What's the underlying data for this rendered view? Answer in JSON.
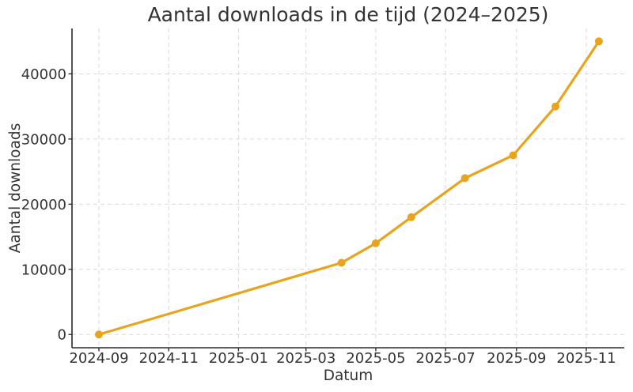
{
  "figure": {
    "background": "#ffffff"
  },
  "chart_data": {
    "type": "line",
    "title": "Aantal downloads in de tijd (2024–2025)",
    "xlabel": "Datum",
    "ylabel": "Aantal downloads",
    "x_axis": {
      "origin": "2024-09-01",
      "ticks": [
        {
          "label": "2024-09",
          "date": "2024-09-01"
        },
        {
          "label": "2024-11",
          "date": "2024-11-01"
        },
        {
          "label": "2025-01",
          "date": "2025-01-01"
        },
        {
          "label": "2025-03",
          "date": "2025-03-01"
        },
        {
          "label": "2025-05",
          "date": "2025-05-01"
        },
        {
          "label": "2025-07",
          "date": "2025-07-01"
        },
        {
          "label": "2025-09",
          "date": "2025-09-01"
        },
        {
          "label": "2025-11",
          "date": "2025-11-01"
        }
      ]
    },
    "y_axis": {
      "ticks": [
        {
          "label": "0",
          "value": 0
        },
        {
          "label": "10000",
          "value": 10000
        },
        {
          "label": "20000",
          "value": 20000
        },
        {
          "label": "30000",
          "value": 30000
        },
        {
          "label": "40000",
          "value": 40000
        }
      ],
      "range": [
        -2250,
        47250
      ]
    },
    "series": [
      {
        "name": "Aantal downloads",
        "color": "#E7A41C",
        "line_width": 3.2,
        "marker": "circle",
        "marker_size": 10,
        "points": [
          {
            "date": "2024-09-01",
            "value": 0
          },
          {
            "date": "2025-04-01",
            "value": 11000
          },
          {
            "date": "2025-05-01",
            "value": 14000
          },
          {
            "date": "2025-06-01",
            "value": 18000
          },
          {
            "date": "2025-07-18",
            "value": 24000
          },
          {
            "date": "2025-08-29",
            "value": 27500
          },
          {
            "date": "2025-10-05",
            "value": 35000
          },
          {
            "date": "2025-11-12",
            "value": 45000
          }
        ]
      }
    ],
    "grid": {
      "show": true,
      "line_style": "dashed",
      "color": "#d9d9d9"
    },
    "legend": {
      "show": false
    },
    "colors": {
      "spine": "#2a2a2a",
      "text": "#333333",
      "background": "#ffffff"
    }
  }
}
